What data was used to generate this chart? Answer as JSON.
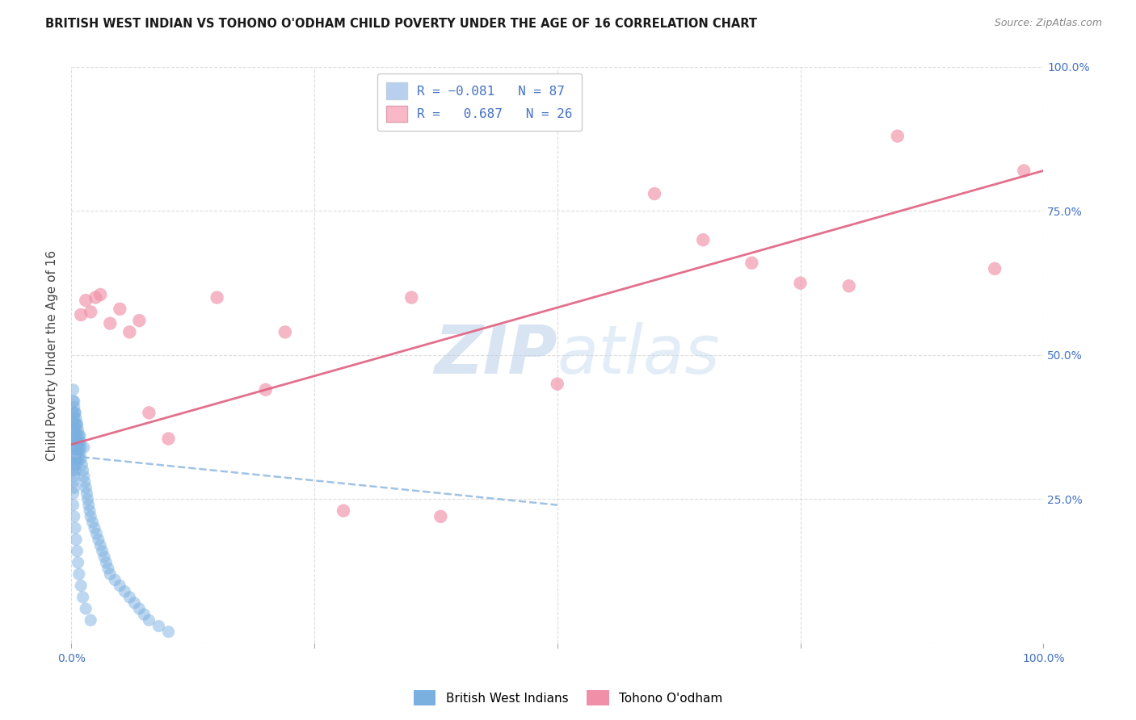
{
  "title": "BRITISH WEST INDIAN VS TOHONO O'ODHAM CHILD POVERTY UNDER THE AGE OF 16 CORRELATION CHART",
  "source": "Source: ZipAtlas.com",
  "ylabel": "Child Poverty Under the Age of 16",
  "xlim": [
    0,
    1
  ],
  "ylim": [
    0,
    1
  ],
  "background_color": "#ffffff",
  "grid_color": "#dddddd",
  "group1_label": "British West Indians",
  "group2_label": "Tohono O'odham",
  "group1_color": "#7ab0e0",
  "group2_color": "#f090a8",
  "blue_line_color": "#90b8e0",
  "pink_line_color": "#e06080",
  "group1_r": -0.081,
  "group1_n": 87,
  "group2_r": 0.687,
  "group2_n": 26,
  "pink_trend_x0": 0.0,
  "pink_trend_y0": 0.345,
  "pink_trend_x1": 1.0,
  "pink_trend_y1": 0.82,
  "blue_trend_x0": 0.0,
  "blue_trend_y0": 0.325,
  "blue_trend_x1": 0.5,
  "blue_trend_y1": 0.24,
  "group1_x": [
    0.002,
    0.002,
    0.002,
    0.002,
    0.002,
    0.002,
    0.002,
    0.002,
    0.002,
    0.002,
    0.003,
    0.003,
    0.003,
    0.003,
    0.003,
    0.003,
    0.003,
    0.003,
    0.004,
    0.004,
    0.004,
    0.004,
    0.004,
    0.004,
    0.005,
    0.005,
    0.005,
    0.005,
    0.005,
    0.006,
    0.006,
    0.006,
    0.006,
    0.007,
    0.007,
    0.007,
    0.008,
    0.008,
    0.008,
    0.009,
    0.009,
    0.01,
    0.01,
    0.011,
    0.012,
    0.013,
    0.014,
    0.015,
    0.016,
    0.017,
    0.018,
    0.019,
    0.02,
    0.022,
    0.024,
    0.026,
    0.028,
    0.03,
    0.032,
    0.034,
    0.036,
    0.038,
    0.04,
    0.045,
    0.05,
    0.055,
    0.06,
    0.065,
    0.07,
    0.075,
    0.08,
    0.09,
    0.1,
    0.003,
    0.004,
    0.005,
    0.006,
    0.007,
    0.008,
    0.01,
    0.012,
    0.015,
    0.02,
    0.002,
    0.003,
    0.004,
    0.006,
    0.009,
    0.013
  ],
  "group1_y": [
    0.42,
    0.4,
    0.38,
    0.36,
    0.34,
    0.32,
    0.3,
    0.28,
    0.26,
    0.24,
    0.41,
    0.39,
    0.37,
    0.35,
    0.33,
    0.31,
    0.29,
    0.27,
    0.4,
    0.38,
    0.36,
    0.34,
    0.32,
    0.3,
    0.39,
    0.37,
    0.35,
    0.33,
    0.31,
    0.38,
    0.36,
    0.34,
    0.32,
    0.37,
    0.35,
    0.33,
    0.36,
    0.34,
    0.32,
    0.35,
    0.33,
    0.34,
    0.32,
    0.31,
    0.3,
    0.29,
    0.28,
    0.27,
    0.26,
    0.25,
    0.24,
    0.23,
    0.22,
    0.21,
    0.2,
    0.19,
    0.18,
    0.17,
    0.16,
    0.15,
    0.14,
    0.13,
    0.12,
    0.11,
    0.1,
    0.09,
    0.08,
    0.07,
    0.06,
    0.05,
    0.04,
    0.03,
    0.02,
    0.22,
    0.2,
    0.18,
    0.16,
    0.14,
    0.12,
    0.1,
    0.08,
    0.06,
    0.04,
    0.44,
    0.42,
    0.4,
    0.38,
    0.36,
    0.34
  ],
  "group2_x": [
    0.01,
    0.015,
    0.02,
    0.025,
    0.03,
    0.04,
    0.05,
    0.06,
    0.07,
    0.08,
    0.1,
    0.15,
    0.2,
    0.22,
    0.28,
    0.35,
    0.38,
    0.5,
    0.6,
    0.65,
    0.7,
    0.75,
    0.8,
    0.85,
    0.95,
    0.98
  ],
  "group2_y": [
    0.57,
    0.595,
    0.575,
    0.6,
    0.605,
    0.555,
    0.58,
    0.54,
    0.56,
    0.4,
    0.355,
    0.6,
    0.44,
    0.54,
    0.23,
    0.6,
    0.22,
    0.45,
    0.78,
    0.7,
    0.66,
    0.625,
    0.62,
    0.88,
    0.65,
    0.82
  ]
}
